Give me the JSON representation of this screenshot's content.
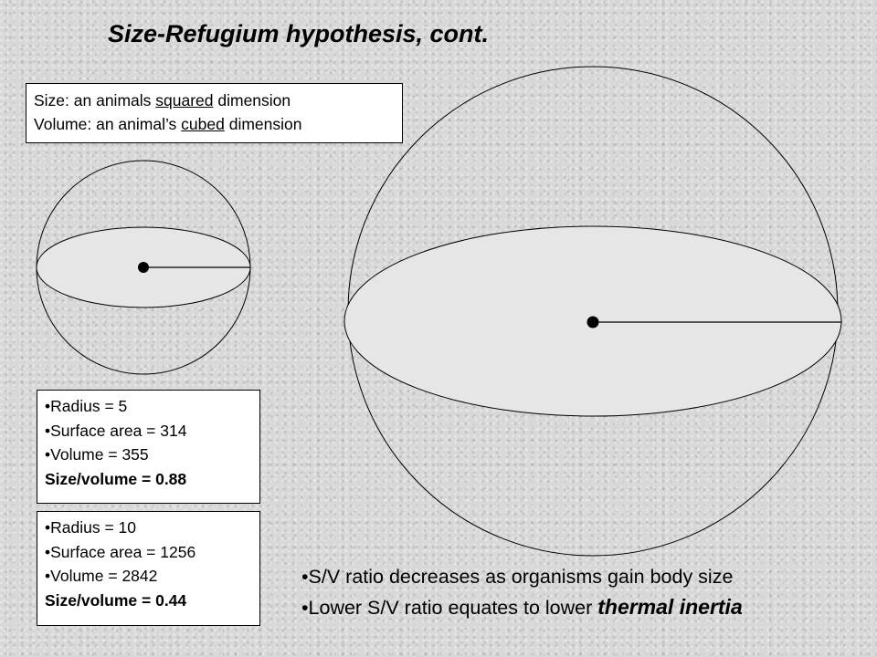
{
  "title": "Size-Refugium hypothesis, cont.",
  "definitions": {
    "line1": {
      "pre": "Size: an animals ",
      "emph": "squared",
      "post": " dimension"
    },
    "line2": {
      "pre": "Volume: an animal’s ",
      "emph": "cubed",
      "post": " dimension"
    }
  },
  "small_sphere": {
    "radius": "•Radius = 5",
    "surface_area": "•Surface area = 314",
    "volume": "•Volume = 355",
    "ratio": "Size/volume =  0.88"
  },
  "large_sphere": {
    "radius": "•Radius = 10",
    "surface_area": "•Surface area = 1256",
    "volume": "•Volume = 2842",
    "ratio": "Size/volume = 0.44"
  },
  "bullets": {
    "b1": "•S/V ratio decreases as organisms gain body size",
    "b2_pre": "•Lower S/V ratio equates to lower ",
    "b2_emph": "thermal inertia"
  }
}
